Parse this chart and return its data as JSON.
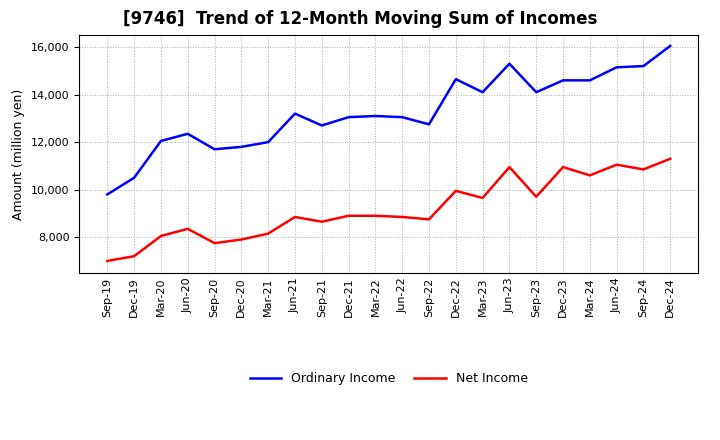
{
  "title": "[9746]  Trend of 12-Month Moving Sum of Incomes",
  "ylabel": "Amount (million yen)",
  "x_labels": [
    "Sep-19",
    "Dec-19",
    "Mar-20",
    "Jun-20",
    "Sep-20",
    "Dec-20",
    "Mar-21",
    "Jun-21",
    "Sep-21",
    "Dec-21",
    "Mar-22",
    "Jun-22",
    "Sep-22",
    "Dec-22",
    "Mar-23",
    "Jun-23",
    "Sep-23",
    "Dec-23",
    "Mar-24",
    "Jun-24",
    "Sep-24",
    "Dec-24"
  ],
  "ordinary_income": [
    9800,
    10500,
    12050,
    12350,
    11700,
    11800,
    12000,
    13200,
    12700,
    13050,
    13100,
    13050,
    12750,
    14650,
    14100,
    15300,
    14100,
    14600,
    14600,
    15150,
    15200,
    16050
  ],
  "net_income": [
    7000,
    7200,
    8050,
    8350,
    7750,
    7900,
    8150,
    8850,
    8650,
    8900,
    8900,
    8850,
    8750,
    9950,
    9650,
    10950,
    9700,
    10950,
    10600,
    11050,
    10850,
    11300
  ],
  "ordinary_color": "#0000FF",
  "net_color": "#FF0000",
  "background_color": "#FFFFFF",
  "grid_color": "#AAAAAA",
  "ylim": [
    6500,
    16500
  ],
  "yticks": [
    8000,
    10000,
    12000,
    14000,
    16000
  ],
  "title_fontsize": 12,
  "axis_fontsize": 9,
  "tick_fontsize": 8,
  "legend_fontsize": 9,
  "line_width": 1.8
}
